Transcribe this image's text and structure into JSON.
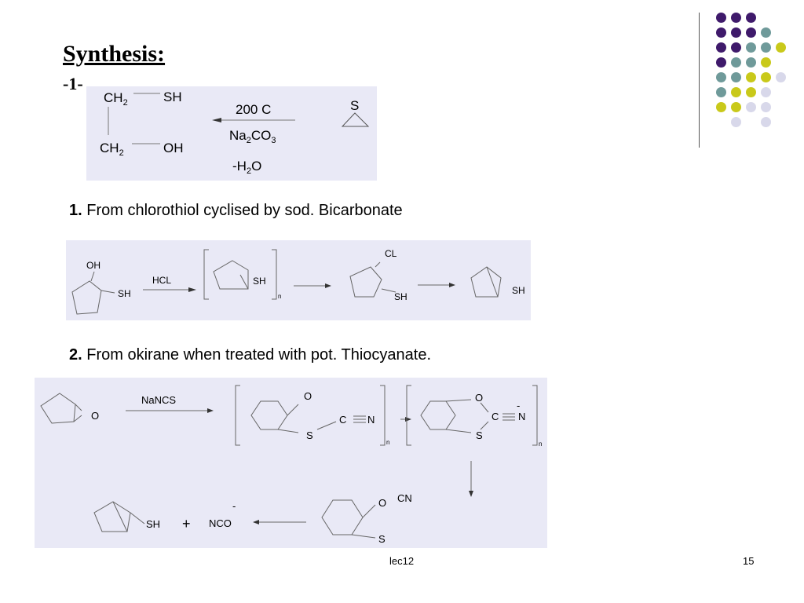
{
  "slide": {
    "title": "Synthesis:",
    "step": "-1-",
    "footer_center": "lec12",
    "page_number": "15"
  },
  "reaction1": {
    "ch2_top": "CH",
    "sh": "SH",
    "ch2_bottom": "CH",
    "oh": "OH",
    "sub2": "2",
    "temp": "200 C",
    "na": "Na",
    "co": "CO",
    "sub3": "3",
    "minus_h": "-H",
    "o": "O",
    "s_ring": "S"
  },
  "section1": {
    "number": "1.",
    "text": " From chlorothiol cyclised by sod. Bicarbonate"
  },
  "reaction2": {
    "oh": "OH",
    "sh1": "SH",
    "hcl": "HCL",
    "sh2": "SH",
    "n": "n",
    "cl": "CL",
    "sh3": "SH",
    "sh4": "SH"
  },
  "section2": {
    "number": "2.",
    "text": " From okirane when treated with pot. Thiocyanate."
  },
  "reaction3": {
    "o1": "O",
    "nancs": "NaNCS",
    "o2": "O",
    "s1": "S",
    "c1": "C",
    "n1": "N",
    "n_sub1": "n",
    "o3": "O",
    "c2": "C",
    "minus": "-",
    "n2": "N",
    "s2": "S",
    "n_sub2": "n",
    "o4": "O",
    "cn": "CN",
    "s3": "S",
    "sh": "SH",
    "plus": "+",
    "nco": "NCO",
    "minus2": "-"
  },
  "decor": {
    "dots": [
      [
        "#3f1a6b",
        "#3f1a6b",
        "#3f1a6b",
        "",
        ""
      ],
      [
        "#3f1a6b",
        "#3f1a6b",
        "#3f1a6b",
        "#6f9a9a",
        ""
      ],
      [
        "#3f1a6b",
        "#3f1a6b",
        "#6f9a9a",
        "#6f9a9a",
        "#c9c91a"
      ],
      [
        "#3f1a6b",
        "#6f9a9a",
        "#6f9a9a",
        "#c9c91a",
        ""
      ],
      [
        "#6f9a9a",
        "#6f9a9a",
        "#c9c91a",
        "#c9c91a",
        "#d8d8ea"
      ],
      [
        "#6f9a9a",
        "#c9c91a",
        "#c9c91a",
        "#d8d8ea",
        ""
      ],
      [
        "#c9c91a",
        "#c9c91a",
        "#d8d8ea",
        "#d8d8ea",
        ""
      ],
      [
        "",
        "#d8d8ea",
        "",
        "#d8d8ea",
        ""
      ]
    ]
  }
}
